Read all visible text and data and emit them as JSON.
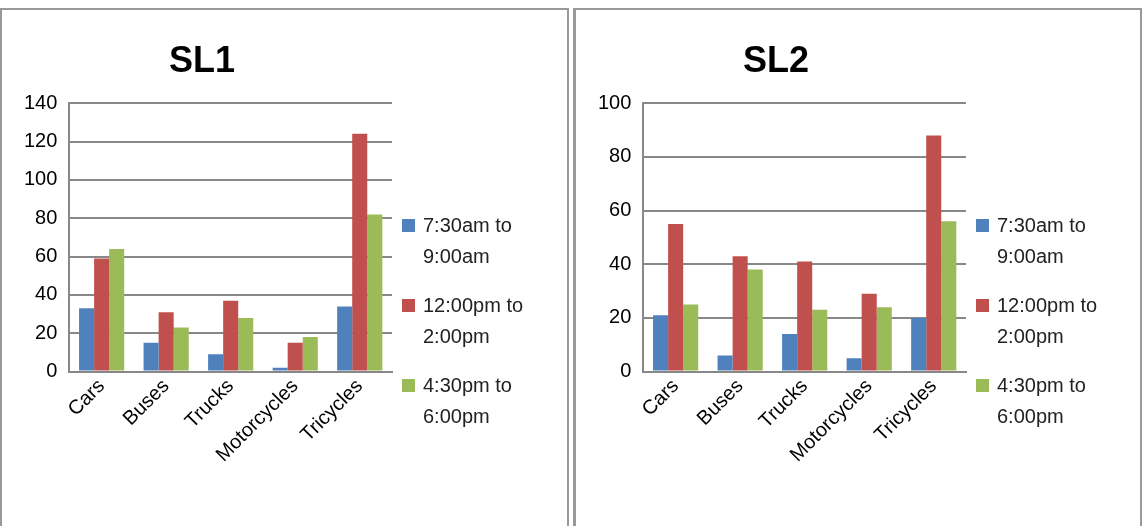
{
  "chart_data": [
    {
      "type": "bar",
      "title": "SL1",
      "categories": [
        "Cars",
        "Buses",
        "Trucks",
        "Motorcycles",
        "Tricycles"
      ],
      "series": [
        {
          "name": "7:30am to 9:00am",
          "color": "#4f81bd",
          "values": [
            33,
            15,
            9,
            2,
            34
          ]
        },
        {
          "name": "12:00pm to 2:00pm",
          "color": "#c0504d",
          "values": [
            59,
            31,
            37,
            15,
            124
          ]
        },
        {
          "name": "4:30pm to 6:00pm",
          "color": "#9bbb59",
          "values": [
            64,
            23,
            28,
            18,
            82
          ]
        }
      ],
      "ylim": [
        0,
        140
      ],
      "yticks": [
        0,
        20,
        40,
        60,
        80,
        100,
        120,
        140
      ],
      "grid": "y",
      "legend": "right"
    },
    {
      "type": "bar",
      "title": "SL2",
      "categories": [
        "Cars",
        "Buses",
        "Trucks",
        "Motorcycles",
        "Tricycles"
      ],
      "series": [
        {
          "name": "7:30am to 9:00am",
          "color": "#4f81bd",
          "values": [
            21,
            6,
            14,
            5,
            20
          ]
        },
        {
          "name": "12:00pm to 2:00pm",
          "color": "#c0504d",
          "values": [
            55,
            43,
            41,
            29,
            88
          ]
        },
        {
          "name": "4:30pm to 6:00pm",
          "color": "#9bbb59",
          "values": [
            25,
            38,
            23,
            24,
            56
          ]
        }
      ],
      "ylim": [
        0,
        100
      ],
      "yticks": [
        0,
        20,
        40,
        60,
        80,
        100
      ],
      "grid": "y",
      "legend": "right"
    }
  ]
}
